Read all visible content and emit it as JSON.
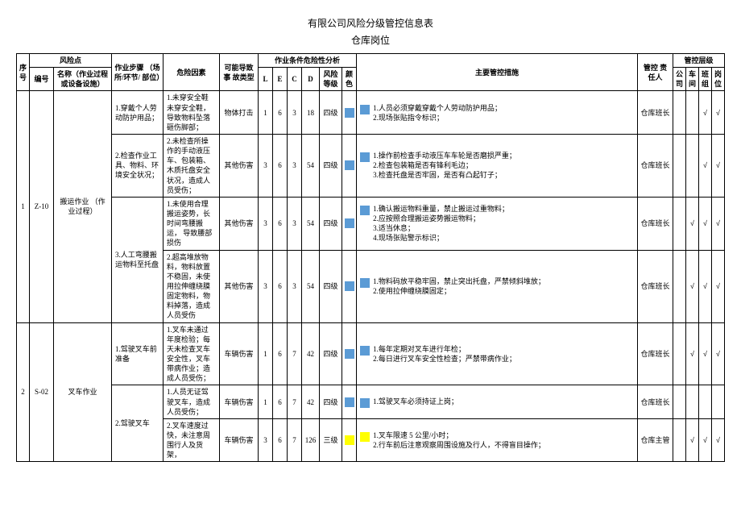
{
  "title": "有限公司风险分级管控信息表",
  "subtitle": "仓库岗位",
  "headers": {
    "seq": "序\n号",
    "risk_point": "风险点",
    "code": "编号",
    "name": "名称（作业过程\n或设备设施）",
    "step": "作业步骤\n（场所/环节/\n部位）",
    "hazard": "危险因素",
    "accident": "可能导致事\n故类型",
    "analysis": "作业条件危险性分析",
    "L": "L",
    "E": "E",
    "C": "C",
    "D": "D",
    "risk_level": "风险\n等级",
    "color": "颜\n色",
    "measures": "主要管控措施",
    "responsible": "管控\n责任人",
    "control_level": "管控层级",
    "company": "公\n司",
    "workshop": "车\n间",
    "team": "班\n组",
    "post": "岗\n位"
  },
  "colors": {
    "level4": "#5b9bd5",
    "level3": "#ffff00"
  },
  "check": "√",
  "rows": [
    {
      "seq": "1",
      "code": "Z-10",
      "name": "搬运作业\n（作业过程）",
      "subrows": [
        {
          "step": "1.穿戴个人劳\n动防护用品；",
          "hazard": "1.未穿安全鞋\n未穿安全鞋，\n导致物料坠落\n砸伤脚部；",
          "accident": "物体打击",
          "L": "1",
          "E": "6",
          "C": "3",
          "D": "18",
          "level": "四级",
          "color_key": "level4",
          "measures": "1.人员必须穿戴穿戴个人劳动防护用品；\n2.现场张贴指令标识；",
          "responsible": "仓库班长",
          "checks": [
            "",
            "",
            "√",
            "√"
          ]
        },
        {
          "step": "2.检查作业工\n具、物料、环\n境安全状况；",
          "hazard": "2.未检查所操\n作的手动液压\n车、包装箱、\n木质托盘安全\n状况，造成人\n员受伤；",
          "accident": "其他伤害",
          "L": "3",
          "E": "6",
          "C": "3",
          "D": "54",
          "level": "四级",
          "color_key": "level4",
          "measures": "1.操作前检查手动液压车车轮是否磨损严重；\n2.检查包装箱是否有锋利毛边；\n3.检查托盘是否牢固，是否有凸起钉子；",
          "responsible": "仓库班长",
          "checks": [
            "",
            "",
            "√",
            "√"
          ]
        },
        {
          "step": "3.人工弯腰搬\n运物料至托盘",
          "step_rowspan": 2,
          "hazard": "1.未使用合理\n搬运姿势，长\n时间弯腰搬运，\n导致腰部损伤",
          "accident": "其他伤害",
          "L": "3",
          "E": "6",
          "C": "3",
          "D": "54",
          "level": "四级",
          "color_key": "level4",
          "measures": "1.确认搬运物料重量，禁止搬运过重物料；\n2.应按照合理搬运姿势搬运物料；\n3.适当休息；\n4.现场张贴警示标识；",
          "responsible": "仓库班长",
          "checks": [
            "",
            "√",
            "√",
            "√"
          ]
        },
        {
          "hazard": "2.超高堆放物\n料，物料放置\n不稳固，未使\n用拉伸缠绕膜\n固定物料，物\n料掉落，造成\n人员受伤",
          "accident": "其他伤害",
          "L": "3",
          "E": "6",
          "C": "3",
          "D": "54",
          "level": "四级",
          "color_key": "level4",
          "measures": "1.物料码放平稳牢固，禁止突出托盘，严禁倾斜堆放；\n2.使用拉伸缠绕膜固定；",
          "responsible": "仓库班长",
          "checks": [
            "",
            "√",
            "√",
            "√"
          ]
        }
      ]
    },
    {
      "seq": "2",
      "code": "S-02",
      "name": "叉车作业",
      "subrows": [
        {
          "step": "1.驾驶叉车前\n准备",
          "hazard": "1.叉车未通过\n年度检验；每\n天未检查叉车\n安全性，叉车\n带病作业；造\n成人员受伤；",
          "accident": "车辆伤害",
          "L": "1",
          "E": "6",
          "C": "7",
          "D": "42",
          "level": "四级",
          "color_key": "level4",
          "measures": "1.每年定期对叉车进行年检；\n2.每日进行叉车安全性检查；严禁带病作业；",
          "responsible": "仓库班长",
          "checks": [
            "",
            "√",
            "√",
            "√"
          ]
        },
        {
          "step": "2.驾驶叉车",
          "step_rowspan": 2,
          "hazard": "1.人员无证驾\n驶叉车，造成\n人员受伤；",
          "accident": "车辆伤害",
          "L": "1",
          "E": "6",
          "C": "7",
          "D": "42",
          "level": "四级",
          "color_key": "level4",
          "measures": "1.驾驶叉车必须持证上岗；",
          "responsible": "仓库班长",
          "checks": [
            "",
            "",
            "",
            ""
          ]
        },
        {
          "hazard": "2.叉车速度过\n快，未注意周\n围行人及货架，",
          "accident": "车辆伤害",
          "L": "3",
          "E": "6",
          "C": "7",
          "D": "126",
          "level": "三级",
          "color_key": "level3",
          "measures": "1.叉车限速 5 公里/小时；\n2.行车前后注意观察周围设施及行人，不得盲目操作；",
          "responsible": "仓库主管",
          "checks": [
            "",
            "√",
            "√",
            "√"
          ]
        }
      ]
    }
  ]
}
